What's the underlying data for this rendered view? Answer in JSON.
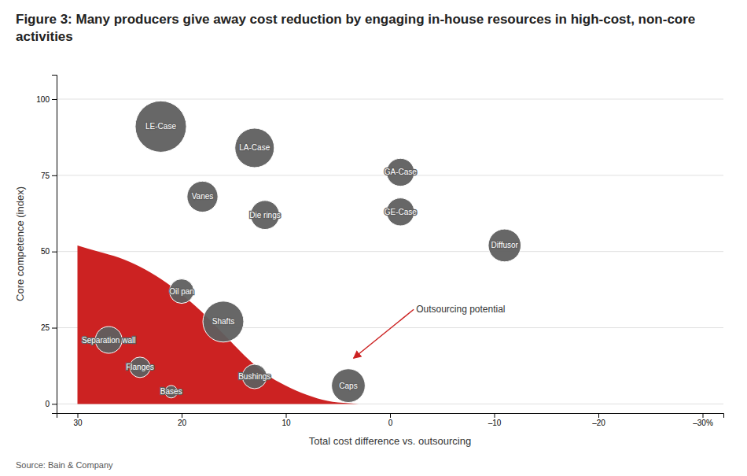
{
  "chart_data": {
    "type": "scatter",
    "title": "Figure 3: Many producers give away cost reduction by engaging in-house resources in high-cost, non-core activities",
    "ylabel": "Core competence (index)",
    "xlabel": "Total cost difference vs. outsourcing",
    "xlim": [
      32,
      -32
    ],
    "ylim": [
      -3,
      108
    ],
    "xticks": [
      30,
      20,
      10,
      0,
      {
        "value": -10,
        "label": "–10"
      },
      {
        "value": -20,
        "label": "–20"
      },
      {
        "value": -30,
        "label": "–30%"
      }
    ],
    "yticks": [
      0,
      25,
      50,
      75,
      100
    ],
    "grid": true,
    "color": "#5f5f5f",
    "labels": [
      "LE-Case",
      "LA-Case",
      "Vanes",
      "Die rings",
      "GA-Case",
      "GE-Case",
      "Diffusor",
      "Oil pan",
      "Shafts",
      "Separation wall",
      "Flanges",
      "Bases",
      "Bushings",
      "Caps"
    ],
    "x": [
      22,
      13,
      18,
      12,
      -1,
      -1,
      -11,
      20,
      16,
      27,
      24,
      21,
      13,
      4
    ],
    "values": [
      91,
      84,
      68,
      62,
      76,
      63,
      52,
      37,
      27,
      21,
      12,
      4,
      9,
      6
    ],
    "sizes": [
      2200,
      1300,
      800,
      700,
      650,
      650,
      900,
      500,
      1400,
      600,
      350,
      130,
      500,
      950
    ],
    "area": {
      "color": "#cc2222",
      "x": [
        30,
        28,
        26,
        24,
        22,
        20,
        18,
        16,
        14,
        12,
        10,
        8,
        6,
        4,
        3
      ],
      "values": [
        52,
        50,
        48,
        45,
        41,
        36,
        30,
        23,
        16,
        10,
        6,
        3,
        1,
        0.2,
        0
      ]
    },
    "annotations": [
      {
        "text": "Outsourcing potential",
        "x": -2.5,
        "y": 31,
        "arrow_x": 3.5,
        "arrow_y": 15
      },
      {
        "text": "Source: Bain & Company"
      }
    ]
  }
}
